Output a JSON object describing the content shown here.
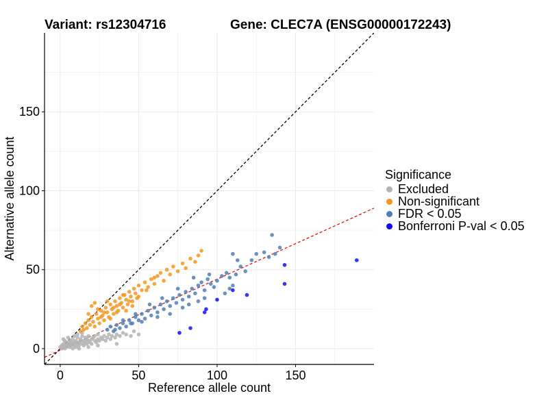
{
  "title": {
    "variant": "Variant: rs12304716",
    "gene": "Gene: CLEC7A (ENSG00000172243)"
  },
  "colors": {
    "excluded": "#b3b3b3",
    "nonsig": "#f5961e",
    "fdr": "#4f7fb3",
    "bonf": "#1010ee",
    "diag": "#000000",
    "fit": "#e01010",
    "grid": "#ebebeb"
  },
  "legend": {
    "title": "Significance",
    "items": [
      {
        "label": "Excluded",
        "color": "#b3b3b3"
      },
      {
        "label": "Non-significant",
        "color": "#f5961e"
      },
      {
        "label": "FDR < 0.05",
        "color": "#4f7fb3"
      },
      {
        "label": "Bonferroni P-val < 0.05",
        "color": "#1010ee"
      }
    ]
  },
  "chart_data": {
    "type": "scatter",
    "xlabel": "Reference allele count",
    "ylabel": "Alternative allele count",
    "xlim": [
      -10,
      200
    ],
    "ylim": [
      -10,
      200
    ],
    "xticks": [
      0,
      50,
      100,
      150
    ],
    "yticks": [
      0,
      50,
      100,
      150
    ],
    "reference_lines": [
      {
        "name": "y = x",
        "slope": 1.0,
        "intercept": 0,
        "style": "dashed",
        "color": "#000000"
      },
      {
        "name": "fit",
        "slope": 0.45,
        "intercept": -1,
        "style": "dashed",
        "color": "#e01010"
      }
    ],
    "series": [
      {
        "name": "Excluded",
        "color": "#b3b3b3",
        "points": [
          [
            0,
            1
          ],
          [
            1,
            0
          ],
          [
            1,
            2
          ],
          [
            2,
            1
          ],
          [
            2,
            3
          ],
          [
            3,
            0
          ],
          [
            3,
            2
          ],
          [
            4,
            1
          ],
          [
            4,
            4
          ],
          [
            5,
            2
          ],
          [
            5,
            3
          ],
          [
            6,
            1
          ],
          [
            6,
            5
          ],
          [
            7,
            2
          ],
          [
            7,
            4
          ],
          [
            8,
            3
          ],
          [
            8,
            6
          ],
          [
            9,
            2
          ],
          [
            9,
            4
          ],
          [
            10,
            1
          ],
          [
            10,
            5
          ],
          [
            11,
            3
          ],
          [
            11,
            7
          ],
          [
            12,
            2
          ],
          [
            12,
            4
          ],
          [
            13,
            5
          ],
          [
            13,
            6
          ],
          [
            14,
            3
          ],
          [
            14,
            8
          ],
          [
            15,
            2
          ],
          [
            15,
            5
          ],
          [
            16,
            4
          ],
          [
            16,
            7
          ],
          [
            17,
            3
          ],
          [
            17,
            6
          ],
          [
            18,
            5
          ],
          [
            18,
            8
          ],
          [
            19,
            4
          ],
          [
            20,
            6
          ],
          [
            20,
            3
          ],
          [
            21,
            7
          ],
          [
            22,
            5
          ],
          [
            22,
            8
          ],
          [
            23,
            4
          ],
          [
            24,
            6
          ],
          [
            24,
            9
          ],
          [
            25,
            5
          ],
          [
            26,
            7
          ],
          [
            27,
            6
          ],
          [
            28,
            8
          ],
          [
            29,
            5
          ],
          [
            30,
            7
          ],
          [
            31,
            9
          ],
          [
            32,
            6
          ],
          [
            33,
            8
          ],
          [
            35,
            7
          ],
          [
            36,
            9
          ],
          [
            38,
            8
          ],
          [
            40,
            10
          ],
          [
            42,
            9
          ],
          [
            45,
            8
          ],
          [
            47,
            11
          ],
          [
            50,
            9
          ],
          [
            36,
            3
          ],
          [
            2,
            6
          ],
          [
            5,
            7
          ],
          [
            9,
            8
          ],
          [
            8,
            0
          ],
          [
            12,
            0
          ],
          [
            18,
            1
          ],
          [
            24,
            2
          ],
          [
            3,
            5
          ],
          [
            6,
            3
          ],
          [
            11,
            9
          ],
          [
            14,
            10
          ]
        ]
      },
      {
        "name": "Non-significant",
        "color": "#f5961e",
        "points": [
          [
            13,
            11
          ],
          [
            14,
            14
          ],
          [
            15,
            12
          ],
          [
            16,
            16
          ],
          [
            17,
            13
          ],
          [
            18,
            18
          ],
          [
            19,
            15
          ],
          [
            20,
            20
          ],
          [
            21,
            17
          ],
          [
            22,
            14
          ],
          [
            23,
            22
          ],
          [
            24,
            19
          ],
          [
            25,
            16
          ],
          [
            26,
            24
          ],
          [
            27,
            21
          ],
          [
            28,
            18
          ],
          [
            29,
            26
          ],
          [
            30,
            23
          ],
          [
            31,
            20
          ],
          [
            32,
            28
          ],
          [
            33,
            25
          ],
          [
            34,
            22
          ],
          [
            35,
            30
          ],
          [
            36,
            27
          ],
          [
            37,
            24
          ],
          [
            38,
            32
          ],
          [
            39,
            29
          ],
          [
            40,
            26
          ],
          [
            41,
            34
          ],
          [
            42,
            31
          ],
          [
            43,
            28
          ],
          [
            44,
            36
          ],
          [
            45,
            33
          ],
          [
            46,
            30
          ],
          [
            47,
            38
          ],
          [
            48,
            35
          ],
          [
            49,
            32
          ],
          [
            50,
            40
          ],
          [
            52,
            37
          ],
          [
            54,
            42
          ],
          [
            56,
            39
          ],
          [
            58,
            44
          ],
          [
            60,
            41
          ],
          [
            62,
            46
          ],
          [
            64,
            48
          ],
          [
            66,
            43
          ],
          [
            68,
            50
          ],
          [
            70,
            47
          ],
          [
            72,
            52
          ],
          [
            75,
            49
          ],
          [
            78,
            54
          ],
          [
            80,
            51
          ],
          [
            83,
            57
          ],
          [
            86,
            55
          ],
          [
            90,
            62
          ],
          [
            88,
            59
          ],
          [
            18,
            22
          ],
          [
            20,
            27
          ],
          [
            22,
            29
          ],
          [
            24,
            25
          ],
          [
            26,
            20
          ],
          [
            28,
            23
          ],
          [
            30,
            30
          ],
          [
            32,
            19
          ],
          [
            34,
            26
          ],
          [
            36,
            23
          ],
          [
            38,
            28
          ],
          [
            40,
            34
          ],
          [
            42,
            24
          ],
          [
            44,
            30
          ],
          [
            46,
            27
          ],
          [
            50,
            33
          ],
          [
            55,
            37
          ],
          [
            60,
            45
          ]
        ]
      },
      {
        "name": "FDR < 0.05",
        "color": "#4f7fb3",
        "points": [
          [
            30,
            12
          ],
          [
            32,
            14
          ],
          [
            34,
            11
          ],
          [
            36,
            15
          ],
          [
            38,
            13
          ],
          [
            40,
            16
          ],
          [
            42,
            14
          ],
          [
            44,
            18
          ],
          [
            46,
            16
          ],
          [
            48,
            20
          ],
          [
            50,
            18
          ],
          [
            52,
            22
          ],
          [
            54,
            19
          ],
          [
            56,
            24
          ],
          [
            58,
            21
          ],
          [
            60,
            26
          ],
          [
            62,
            23
          ],
          [
            64,
            28
          ],
          [
            66,
            25
          ],
          [
            68,
            30
          ],
          [
            70,
            27
          ],
          [
            72,
            32
          ],
          [
            74,
            29
          ],
          [
            76,
            34
          ],
          [
            78,
            31
          ],
          [
            80,
            36
          ],
          [
            82,
            33
          ],
          [
            84,
            38
          ],
          [
            86,
            35
          ],
          [
            88,
            40
          ],
          [
            90,
            42
          ],
          [
            92,
            37
          ],
          [
            94,
            44
          ],
          [
            96,
            41
          ],
          [
            98,
            39
          ],
          [
            100,
            43
          ],
          [
            103,
            46
          ],
          [
            106,
            48
          ],
          [
            108,
            45
          ],
          [
            110,
            40
          ],
          [
            112,
            47
          ],
          [
            115,
            52
          ],
          [
            118,
            49
          ],
          [
            122,
            56
          ],
          [
            125,
            60
          ],
          [
            130,
            61
          ],
          [
            133,
            58
          ],
          [
            135,
            72
          ],
          [
            137,
            60
          ],
          [
            140,
            64
          ],
          [
            110,
            60
          ],
          [
            113,
            56
          ],
          [
            108,
            38
          ],
          [
            105,
            35
          ],
          [
            95,
            47
          ],
          [
            85,
            45
          ],
          [
            75,
            38
          ],
          [
            65,
            32
          ],
          [
            57,
            28
          ],
          [
            48,
            22
          ],
          [
            40,
            18
          ],
          [
            35,
            12
          ],
          [
            45,
            16
          ],
          [
            52,
            17
          ],
          [
            62,
            20
          ],
          [
            70,
            22
          ],
          [
            78,
            26
          ],
          [
            82,
            28
          ],
          [
            88,
            30
          ],
          [
            92,
            32
          ]
        ]
      },
      {
        "name": "Bonferroni P-val < 0.05",
        "color": "#1010ee",
        "points": [
          [
            76,
            10
          ],
          [
            83,
            13
          ],
          [
            92,
            23
          ],
          [
            93,
            25
          ],
          [
            100,
            31
          ],
          [
            110,
            37
          ],
          [
            119,
            34
          ],
          [
            143,
            53
          ],
          [
            143,
            41
          ],
          [
            189,
            56
          ]
        ]
      }
    ]
  }
}
